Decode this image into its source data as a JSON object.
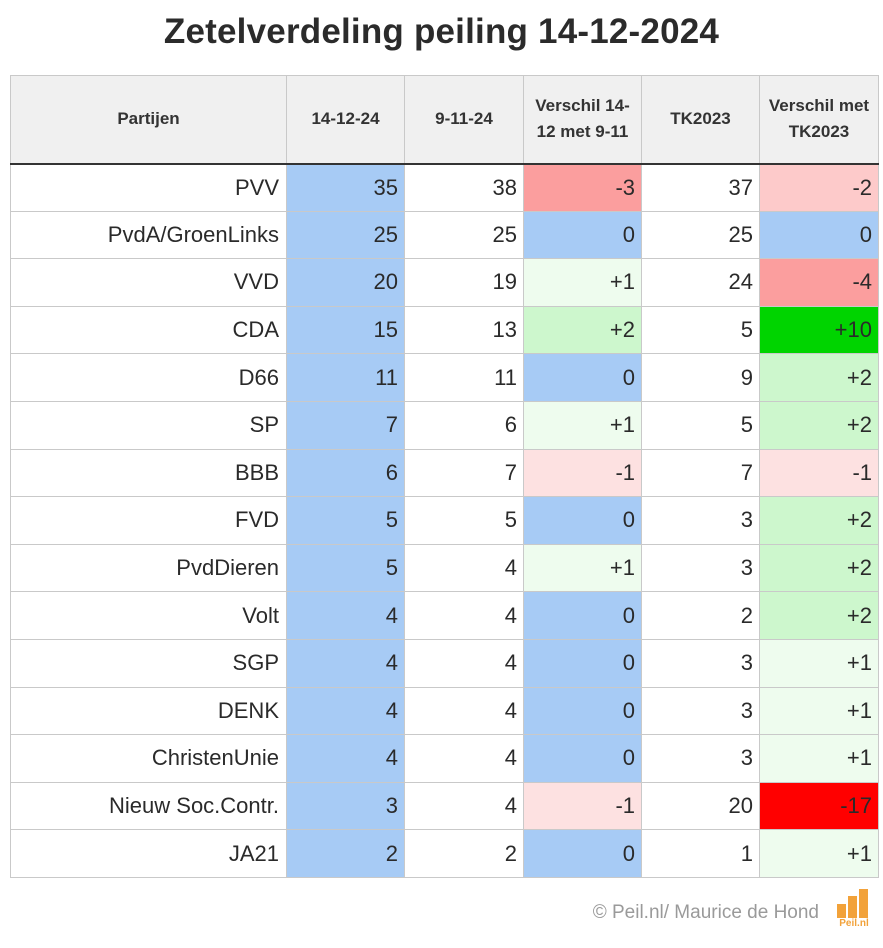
{
  "chart_data": {
    "type": "table",
    "title": "Zetelverdeling peiling 14-12-2024",
    "columns": [
      "Partijen",
      "14-12-24",
      "9-11-24",
      "Verschil 14-12 met 9-11",
      "TK2023",
      "Verschil met TK2023"
    ],
    "rows": [
      {
        "party": "PVV",
        "current": "35",
        "previous": "38",
        "diff_prev": "-3",
        "tk2023": "37",
        "diff_tk": "-2"
      },
      {
        "party": "PvdA/GroenLinks",
        "current": "25",
        "previous": "25",
        "diff_prev": "0",
        "tk2023": "25",
        "diff_tk": "0"
      },
      {
        "party": "VVD",
        "current": "20",
        "previous": "19",
        "diff_prev": "+1",
        "tk2023": "24",
        "diff_tk": "-4"
      },
      {
        "party": "CDA",
        "current": "15",
        "previous": "13",
        "diff_prev": "+2",
        "tk2023": "5",
        "diff_tk": "+10"
      },
      {
        "party": "D66",
        "current": "11",
        "previous": "11",
        "diff_prev": "0",
        "tk2023": "9",
        "diff_tk": "+2"
      },
      {
        "party": "SP",
        "current": "7",
        "previous": "6",
        "diff_prev": "+1",
        "tk2023": "5",
        "diff_tk": "+2"
      },
      {
        "party": "BBB",
        "current": "6",
        "previous": "7",
        "diff_prev": "-1",
        "tk2023": "7",
        "diff_tk": "-1"
      },
      {
        "party": "FVD",
        "current": "5",
        "previous": "5",
        "diff_prev": "0",
        "tk2023": "3",
        "diff_tk": "+2"
      },
      {
        "party": "PvdDieren",
        "current": "5",
        "previous": "4",
        "diff_prev": "+1",
        "tk2023": "3",
        "diff_tk": "+2"
      },
      {
        "party": "Volt",
        "current": "4",
        "previous": "4",
        "diff_prev": "0",
        "tk2023": "2",
        "diff_tk": "+2"
      },
      {
        "party": "SGP",
        "current": "4",
        "previous": "4",
        "diff_prev": "0",
        "tk2023": "3",
        "diff_tk": "+1"
      },
      {
        "party": "DENK",
        "current": "4",
        "previous": "4",
        "diff_prev": "0",
        "tk2023": "3",
        "diff_tk": "+1"
      },
      {
        "party": "ChristenUnie",
        "current": "4",
        "previous": "4",
        "diff_prev": "0",
        "tk2023": "3",
        "diff_tk": "+1"
      },
      {
        "party": "Nieuw Soc.Contr.",
        "current": "3",
        "previous": "4",
        "diff_prev": "-1",
        "tk2023": "20",
        "diff_tk": "-17"
      },
      {
        "party": "JA21",
        "current": "2",
        "previous": "2",
        "diff_prev": "0",
        "tk2023": "1",
        "diff_tk": "+1"
      }
    ],
    "colors": {
      "current_column": "#a7cbf5",
      "zero": "#a7cbf5",
      "pos_1": "#eefcee",
      "pos_2": "#cdf7cd",
      "pos_10": "#00d400",
      "neg_1": "#fde1e1",
      "neg_2": "#fdcaca",
      "neg_3": "#fb9e9e",
      "neg_17": "#ff0000"
    }
  },
  "footer": {
    "credit": "© Peil.nl/ Maurice de Hond",
    "logo_text": "Peil.nl"
  }
}
